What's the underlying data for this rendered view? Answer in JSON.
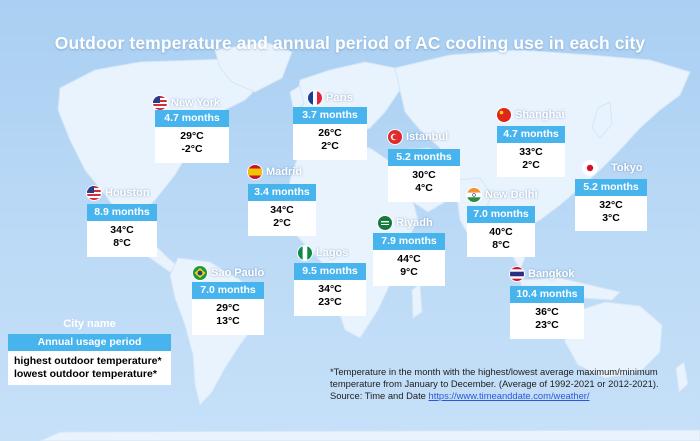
{
  "title": "Outdoor temperature and annual period of AC cooling use in each city",
  "colors": {
    "period_bar": "#47b4ee",
    "background": "#bcdaf6",
    "land": "#e9f3fd"
  },
  "legend": {
    "city_name": "City name",
    "period": "Annual usage period",
    "highest": "highest outdoor temperature*",
    "lowest": "lowest outdoor temperature*"
  },
  "footnote": {
    "text": "*Temperature in the month with the highest/lowest average maximum/minimum temperature from January to December. (Average of 1992-2021 or 2012-2021).",
    "source_prefix": "Source: Time and Date ",
    "source_link": "https://www.timeanddate.com/weather/"
  },
  "cities": [
    {
      "key": "new_york",
      "name": "New York",
      "flag": "us-flag-icon",
      "months": "4.7 months",
      "high": "29°C",
      "low": "-2°C"
    },
    {
      "key": "paris",
      "name": "Paris",
      "flag": "france-flag-icon",
      "months": "3.7 months",
      "high": "26°C",
      "low": "2°C"
    },
    {
      "key": "istanbul",
      "name": "Istanbul",
      "flag": "turkey-flag-icon",
      "months": "5.2 months",
      "high": "30°C",
      "low": "4°C"
    },
    {
      "key": "shanghai",
      "name": "Shanghai",
      "flag": "china-flag-icon",
      "months": "4.7 months",
      "high": "33°C",
      "low": "2°C"
    },
    {
      "key": "tokyo",
      "name": "Tokyo",
      "flag": "japan-flag-icon",
      "months": "5.2 months",
      "high": "32°C",
      "low": "3°C"
    },
    {
      "key": "houston",
      "name": "Houston",
      "flag": "us-flag-icon",
      "months": "8.9 months",
      "high": "34°C",
      "low": "8°C"
    },
    {
      "key": "madrid",
      "name": "Madrid",
      "flag": "spain-flag-icon",
      "months": "3.4 months",
      "high": "34°C",
      "low": "2°C"
    },
    {
      "key": "new_delhi",
      "name": "New Delhi",
      "flag": "india-flag-icon",
      "months": "7.0 months",
      "high": "40°C",
      "low": "8°C"
    },
    {
      "key": "riyadh",
      "name": "Riyadh",
      "flag": "saudi-flag-icon",
      "months": "7.9 months",
      "high": "44°C",
      "low": "9°C"
    },
    {
      "key": "lagos",
      "name": "Lagos",
      "flag": "nigeria-flag-icon",
      "months": "9.5 months",
      "high": "34°C",
      "low": "23°C"
    },
    {
      "key": "sao_paulo",
      "name": "Sao Paulo",
      "flag": "brazil-flag-icon",
      "months": "7.0 months",
      "high": "29°C",
      "low": "13°C"
    },
    {
      "key": "bangkok",
      "name": "Bangkok",
      "flag": "thailand-flag-icon",
      "months": "10.4 months",
      "high": "36°C",
      "low": "23°C"
    }
  ]
}
